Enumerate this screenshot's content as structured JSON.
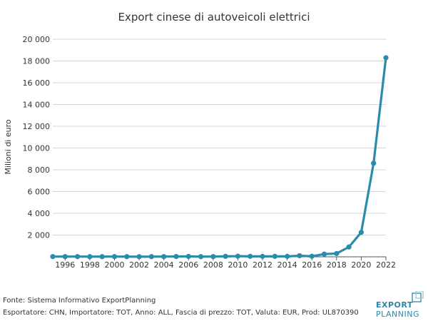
{
  "chart_data": {
    "type": "line",
    "title": "Export cinese di autoveicoli elettrici",
    "ylabel": "Milioni di euro",
    "xlabel": "",
    "ylim": [
      0,
      20000
    ],
    "xlim": [
      1995,
      2022
    ],
    "yticks": [
      2000,
      4000,
      6000,
      8000,
      10000,
      12000,
      14000,
      16000,
      18000,
      20000
    ],
    "ytick_labels": [
      "2 000",
      "4 000",
      "6 000",
      "8 000",
      "10 000",
      "12 000",
      "14 000",
      "16 000",
      "18 000",
      "20 000"
    ],
    "xticks": [
      1996,
      1998,
      2000,
      2002,
      2004,
      2006,
      2008,
      2010,
      2012,
      2014,
      2016,
      2018,
      2020,
      2022
    ],
    "grid": "horizontal",
    "line_color": "#2a8cab",
    "series": [
      {
        "x": [
          1995,
          1996,
          1997,
          1998,
          1999,
          2000,
          2001,
          2002,
          2003,
          2004,
          2005,
          2006,
          2007,
          2008,
          2009,
          2010,
          2011,
          2012,
          2013,
          2014,
          2015,
          2016,
          2017,
          2018,
          2019,
          2020,
          2021,
          2022
        ],
        "values": [
          20,
          20,
          20,
          15,
          15,
          20,
          15,
          10,
          15,
          20,
          30,
          35,
          15,
          20,
          40,
          60,
          40,
          40,
          40,
          40,
          100,
          50,
          250,
          300,
          900,
          2250,
          8600,
          18300
        ]
      }
    ]
  },
  "footer": {
    "source": "Fonte: Sistema Informativo ExportPlanning",
    "details": "Esportatore: CHN, Importatore: TOT, Anno: ALL, Fascia di prezzo: TOT, Valuta: EUR, Prod: UL870390"
  },
  "logo": {
    "line1": "EXPORT",
    "line2": "PLANNING",
    "color": "#2f86a6"
  }
}
